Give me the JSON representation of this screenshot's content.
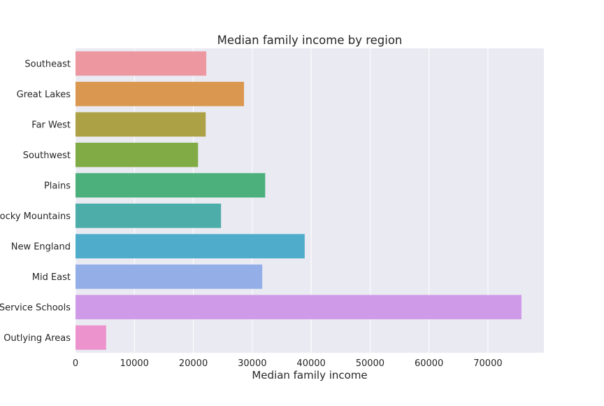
{
  "chart_data": {
    "type": "bar",
    "orientation": "horizontal",
    "title": "Median family income by region",
    "xlabel": "Median family income",
    "ylabel": "",
    "categories": [
      "Southeast",
      "Great Lakes",
      "Far West",
      "Southwest",
      "Plains",
      "Rocky Mountains",
      "New England",
      "Mid East",
      "US Service Schools",
      "Outlying Areas"
    ],
    "values": [
      22200,
      28600,
      22100,
      20800,
      32200,
      24700,
      38900,
      31700,
      75700,
      5200
    ],
    "colors": [
      "#ed97a1",
      "#da9750",
      "#ada146",
      "#80ab45",
      "#4cb07c",
      "#4dada8",
      "#4fadcb",
      "#94aee8",
      "#cf9ae8",
      "#ec92cd"
    ],
    "xlim": [
      0,
      79500
    ],
    "xticks": [
      0,
      10000,
      20000,
      30000,
      40000,
      50000,
      60000,
      70000
    ],
    "grid": true,
    "background_color": "#eaeaf2",
    "legend": "none"
  }
}
